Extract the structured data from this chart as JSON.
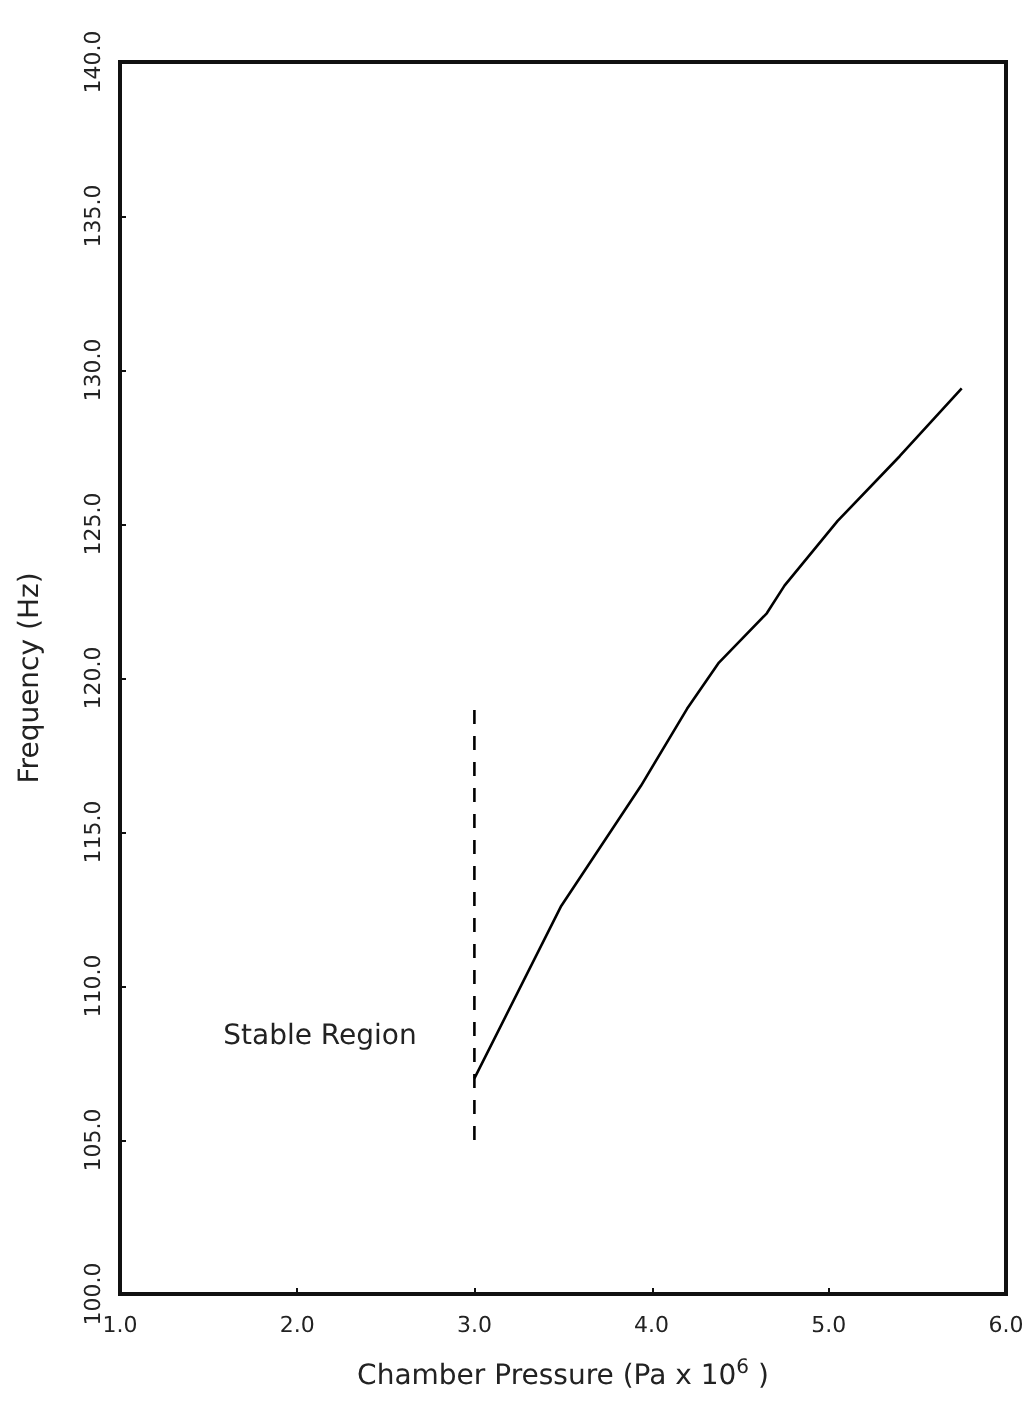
{
  "chart_data": {
    "type": "line",
    "xlabel": "Chamber Pressure (Pa x 10$^{6}$ )",
    "ylabel": "Frequency (Hz)",
    "xlim": [
      1,
      6
    ],
    "xticks": [
      {
        "value": 1,
        "label": "1.0"
      },
      {
        "value": 2,
        "label": "2.0"
      },
      {
        "value": 3,
        "label": "3.0"
      },
      {
        "value": 4,
        "label": "4.0"
      },
      {
        "value": 5,
        "label": "5.0"
      },
      {
        "value": 6,
        "label": "6.0"
      }
    ],
    "ylim": [
      100,
      140
    ],
    "yticks": [
      {
        "value": 100,
        "label": "100.0"
      },
      {
        "value": 105,
        "label": "105.0"
      },
      {
        "value": 110,
        "label": "110.0"
      },
      {
        "value": 115,
        "label": "115.0"
      },
      {
        "value": 120,
        "label": "120.0"
      },
      {
        "value": 125,
        "label": "125.0"
      },
      {
        "value": 130,
        "label": "130.0"
      },
      {
        "value": 135,
        "label": "135.0"
      },
      {
        "value": 140,
        "label": "140.0"
      }
    ],
    "grid": false,
    "marker": "none",
    "series": [
      {
        "color": "#000000",
        "line_style": "solid",
        "x": [
          3.0,
          3.49,
          3.94,
          4.2,
          4.38,
          4.65,
          4.75,
          5.05,
          5.4,
          5.75
        ],
        "values": [
          107.0,
          112.6,
          116.5,
          119.0,
          120.5,
          122.1,
          123.0,
          125.1,
          127.2,
          129.4
        ]
      },
      {
        "color": "#000000",
        "line_style": "dashed",
        "x": [
          3.0,
          3.0
        ],
        "values": [
          105.0,
          119.1
        ]
      }
    ],
    "annotations": [
      "Stable Region"
    ]
  }
}
